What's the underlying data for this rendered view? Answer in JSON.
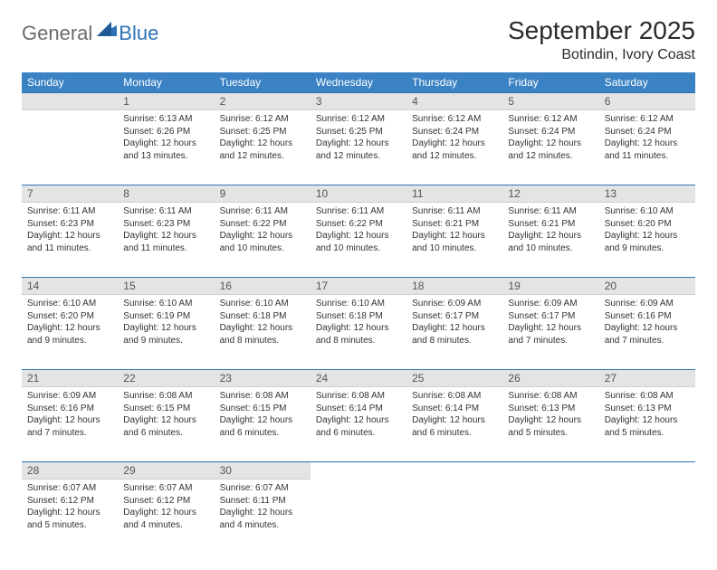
{
  "logo": {
    "text1": "General",
    "text2": "Blue"
  },
  "title": "September 2025",
  "subtitle": "Botindin, Ivory Coast",
  "colors": {
    "header_bg": "#3a82c4",
    "header_fg": "#ffffff",
    "daynum_bg": "#e4e4e4",
    "row_divider": "#2d72b5",
    "logo_blue": "#2d72b5",
    "logo_gray": "#6b6b6b"
  },
  "dayNames": [
    "Sunday",
    "Monday",
    "Tuesday",
    "Wednesday",
    "Thursday",
    "Friday",
    "Saturday"
  ],
  "firstDayIndex": 1,
  "daysInMonth": 30,
  "days": {
    "1": {
      "sunrise": "6:13 AM",
      "sunset": "6:26 PM",
      "daylight": "12 hours and 13 minutes."
    },
    "2": {
      "sunrise": "6:12 AM",
      "sunset": "6:25 PM",
      "daylight": "12 hours and 12 minutes."
    },
    "3": {
      "sunrise": "6:12 AM",
      "sunset": "6:25 PM",
      "daylight": "12 hours and 12 minutes."
    },
    "4": {
      "sunrise": "6:12 AM",
      "sunset": "6:24 PM",
      "daylight": "12 hours and 12 minutes."
    },
    "5": {
      "sunrise": "6:12 AM",
      "sunset": "6:24 PM",
      "daylight": "12 hours and 12 minutes."
    },
    "6": {
      "sunrise": "6:12 AM",
      "sunset": "6:24 PM",
      "daylight": "12 hours and 11 minutes."
    },
    "7": {
      "sunrise": "6:11 AM",
      "sunset": "6:23 PM",
      "daylight": "12 hours and 11 minutes."
    },
    "8": {
      "sunrise": "6:11 AM",
      "sunset": "6:23 PM",
      "daylight": "12 hours and 11 minutes."
    },
    "9": {
      "sunrise": "6:11 AM",
      "sunset": "6:22 PM",
      "daylight": "12 hours and 10 minutes."
    },
    "10": {
      "sunrise": "6:11 AM",
      "sunset": "6:22 PM",
      "daylight": "12 hours and 10 minutes."
    },
    "11": {
      "sunrise": "6:11 AM",
      "sunset": "6:21 PM",
      "daylight": "12 hours and 10 minutes."
    },
    "12": {
      "sunrise": "6:11 AM",
      "sunset": "6:21 PM",
      "daylight": "12 hours and 10 minutes."
    },
    "13": {
      "sunrise": "6:10 AM",
      "sunset": "6:20 PM",
      "daylight": "12 hours and 9 minutes."
    },
    "14": {
      "sunrise": "6:10 AM",
      "sunset": "6:20 PM",
      "daylight": "12 hours and 9 minutes."
    },
    "15": {
      "sunrise": "6:10 AM",
      "sunset": "6:19 PM",
      "daylight": "12 hours and 9 minutes."
    },
    "16": {
      "sunrise": "6:10 AM",
      "sunset": "6:18 PM",
      "daylight": "12 hours and 8 minutes."
    },
    "17": {
      "sunrise": "6:10 AM",
      "sunset": "6:18 PM",
      "daylight": "12 hours and 8 minutes."
    },
    "18": {
      "sunrise": "6:09 AM",
      "sunset": "6:17 PM",
      "daylight": "12 hours and 8 minutes."
    },
    "19": {
      "sunrise": "6:09 AM",
      "sunset": "6:17 PM",
      "daylight": "12 hours and 7 minutes."
    },
    "20": {
      "sunrise": "6:09 AM",
      "sunset": "6:16 PM",
      "daylight": "12 hours and 7 minutes."
    },
    "21": {
      "sunrise": "6:09 AM",
      "sunset": "6:16 PM",
      "daylight": "12 hours and 7 minutes."
    },
    "22": {
      "sunrise": "6:08 AM",
      "sunset": "6:15 PM",
      "daylight": "12 hours and 6 minutes."
    },
    "23": {
      "sunrise": "6:08 AM",
      "sunset": "6:15 PM",
      "daylight": "12 hours and 6 minutes."
    },
    "24": {
      "sunrise": "6:08 AM",
      "sunset": "6:14 PM",
      "daylight": "12 hours and 6 minutes."
    },
    "25": {
      "sunrise": "6:08 AM",
      "sunset": "6:14 PM",
      "daylight": "12 hours and 6 minutes."
    },
    "26": {
      "sunrise": "6:08 AM",
      "sunset": "6:13 PM",
      "daylight": "12 hours and 5 minutes."
    },
    "27": {
      "sunrise": "6:08 AM",
      "sunset": "6:13 PM",
      "daylight": "12 hours and 5 minutes."
    },
    "28": {
      "sunrise": "6:07 AM",
      "sunset": "6:12 PM",
      "daylight": "12 hours and 5 minutes."
    },
    "29": {
      "sunrise": "6:07 AM",
      "sunset": "6:12 PM",
      "daylight": "12 hours and 4 minutes."
    },
    "30": {
      "sunrise": "6:07 AM",
      "sunset": "6:11 PM",
      "daylight": "12 hours and 4 minutes."
    }
  },
  "labels": {
    "sunrise": "Sunrise: ",
    "sunset": "Sunset: ",
    "daylight": "Daylight: "
  }
}
